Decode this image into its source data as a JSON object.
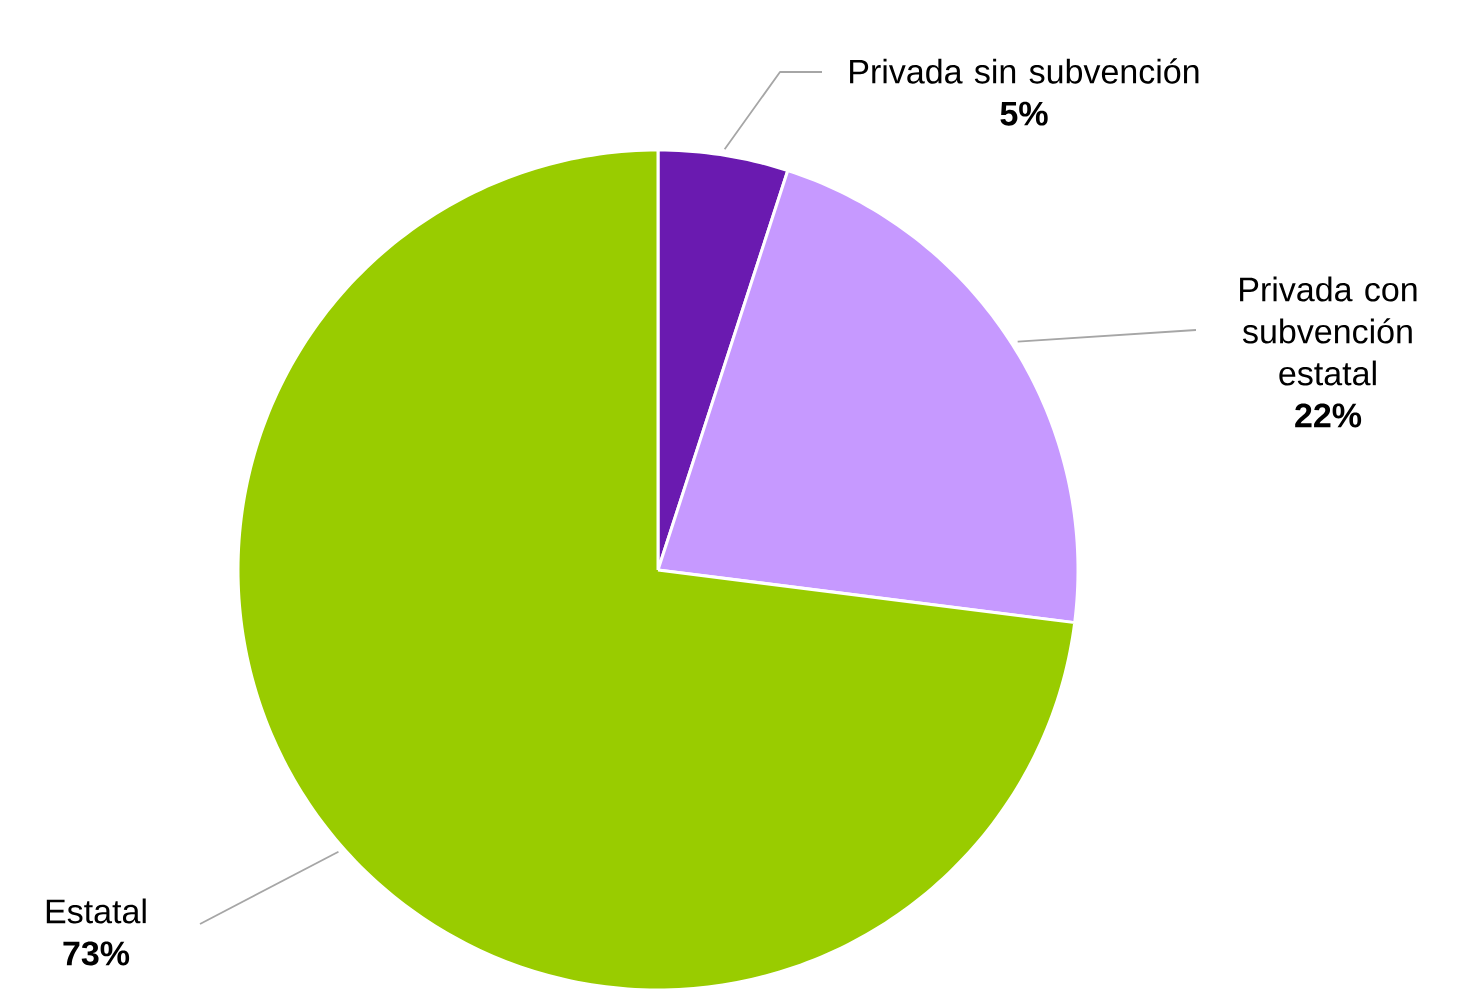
{
  "chart_data": {
    "type": "pie",
    "categories": [
      "Privada sin subvención",
      "Privada con subvención estatal",
      "Estatal"
    ],
    "values": [
      5,
      22,
      73
    ],
    "colors": [
      "#6a1ab0",
      "#c699ff",
      "#99cc00"
    ],
    "value_labels": [
      "5%",
      "22%",
      "73%"
    ]
  }
}
